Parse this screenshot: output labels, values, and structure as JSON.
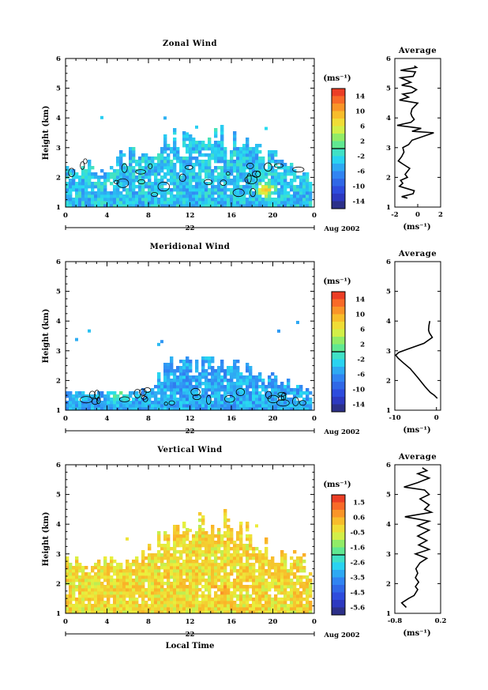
{
  "chart_data": [
    {
      "type": "heatmap",
      "title": "Zonal Wind",
      "ylabel": "Height (km)",
      "ylim": [
        1,
        6
      ],
      "y_ticks": [
        "1",
        "2",
        "3",
        "4",
        "5",
        "6"
      ],
      "xlim": [
        0,
        24
      ],
      "x_ticks": [
        "0",
        "4",
        "8",
        "12",
        "16",
        "20",
        "0"
      ],
      "date_day": "22",
      "date_label": "Aug 2002",
      "colorbar": {
        "unit": "(ms⁻¹)",
        "range": [
          -16,
          16
        ],
        "ticks": [
          "14",
          "10",
          "6",
          "2",
          "-2",
          "-6",
          "-10",
          "-14"
        ]
      },
      "field": {
        "mean": -3.5,
        "spread": 3,
        "low_frac": 0.07,
        "hump": [
          [
            3,
            0.2
          ],
          [
            14,
            0.45
          ],
          [
            16,
            0.38
          ],
          [
            21,
            0.25
          ],
          [
            24,
            0.12
          ]
        ],
        "hotspot": [
          19.5,
          1.6,
          10
        ]
      },
      "average_profile": {
        "title": "Average",
        "xlabel": "(ms⁻¹)",
        "xlim": [
          -2,
          2
        ],
        "x_ticks": [
          "-2",
          "0",
          "2"
        ],
        "ylim": [
          1,
          6
        ],
        "y_ticks": [
          "1",
          "2",
          "3",
          "4",
          "5",
          "6"
        ],
        "points": [
          [
            -0.9,
            1.3
          ],
          [
            -1.4,
            1.35
          ],
          [
            -0.4,
            1.45
          ],
          [
            -0.3,
            1.55
          ],
          [
            -1.6,
            1.7
          ],
          [
            -1.3,
            1.8
          ],
          [
            -1.5,
            1.9
          ],
          [
            -0.9,
            2.0
          ],
          [
            -1.1,
            2.1
          ],
          [
            -0.7,
            2.3
          ],
          [
            -1.3,
            2.45
          ],
          [
            -1.7,
            2.55
          ],
          [
            -1.4,
            2.7
          ],
          [
            -1.2,
            2.85
          ],
          [
            -1.3,
            3.0
          ],
          [
            -0.8,
            3.1
          ],
          [
            -0.5,
            3.25
          ],
          [
            1.4,
            3.5
          ],
          [
            -0.5,
            3.55
          ],
          [
            0.3,
            3.65
          ],
          [
            -1.8,
            3.75
          ],
          [
            -0.6,
            3.85
          ],
          [
            -0.3,
            3.95
          ],
          [
            -0.5,
            4.05
          ],
          [
            -0.6,
            4.15
          ],
          [
            -0.5,
            4.3
          ],
          [
            0.0,
            4.5
          ],
          [
            -1.6,
            4.6
          ],
          [
            -0.8,
            4.7
          ],
          [
            -1.3,
            4.8
          ],
          [
            -0.5,
            4.85
          ],
          [
            -0.1,
            4.95
          ],
          [
            -0.6,
            5.05
          ],
          [
            -1.4,
            5.1
          ],
          [
            -0.6,
            5.2
          ],
          [
            -1.5,
            5.35
          ],
          [
            -0.4,
            5.4
          ],
          [
            -0.2,
            5.55
          ],
          [
            -1.5,
            5.6
          ],
          [
            -0.1,
            5.7
          ],
          [
            -0.3,
            5.75
          ]
        ]
      }
    },
    {
      "type": "heatmap",
      "title": "Meridional Wind",
      "ylabel": "Height (km)",
      "ylim": [
        1,
        6
      ],
      "y_ticks": [
        "1",
        "2",
        "3",
        "4",
        "5",
        "6"
      ],
      "xlim": [
        0,
        24
      ],
      "x_ticks": [
        "0",
        "4",
        "8",
        "12",
        "16",
        "20",
        "0"
      ],
      "date_day": "22",
      "date_label": "Aug 2002",
      "colorbar": {
        "unit": "(ms⁻¹)",
        "range": [
          -16,
          16
        ],
        "ticks": [
          "14",
          "10",
          "6",
          "2",
          "-2",
          "-6",
          "-10",
          "-14"
        ]
      },
      "field": {
        "mean": -5,
        "spread": 2.5,
        "low_frac": 0.07,
        "hump": [
          [
            3,
            0.06
          ],
          [
            8,
            0.07
          ],
          [
            10,
            0.25
          ],
          [
            14,
            0.28
          ],
          [
            17,
            0.25
          ],
          [
            19,
            0.18
          ],
          [
            24,
            0.08
          ]
        ],
        "hotspot": [
          5.2,
          1.5,
          1
        ]
      },
      "average_profile": {
        "title": "Average",
        "xlabel": "(ms⁻¹)",
        "xlim": [
          -10,
          1
        ],
        "x_ticks": [
          "-10",
          "0"
        ],
        "ylim": [
          1,
          6
        ],
        "y_ticks": [
          "1",
          "2",
          "3",
          "4",
          "5",
          "6"
        ],
        "points": [
          [
            0.2,
            1.4
          ],
          [
            -0.5,
            1.5
          ],
          [
            -1.5,
            1.6
          ],
          [
            -2.8,
            1.8
          ],
          [
            -4.5,
            2.1
          ],
          [
            -6.3,
            2.4
          ],
          [
            -8.0,
            2.6
          ],
          [
            -9.2,
            2.75
          ],
          [
            -9.8,
            2.85
          ],
          [
            -9.0,
            2.95
          ],
          [
            -7.0,
            3.05
          ],
          [
            -3.0,
            3.25
          ],
          [
            -1.0,
            3.45
          ],
          [
            -1.7,
            3.6
          ],
          [
            -1.9,
            3.7
          ],
          [
            -1.8,
            3.85
          ],
          [
            -1.6,
            4.0
          ]
        ]
      }
    },
    {
      "type": "heatmap",
      "title": "Vertical Wind",
      "ylabel": "Height (km)",
      "ylim": [
        1,
        6
      ],
      "y_ticks": [
        "1",
        "2",
        "3",
        "4",
        "5",
        "6"
      ],
      "xlim": [
        0,
        24
      ],
      "x_ticks": [
        "0",
        "4",
        "8",
        "12",
        "16",
        "20",
        "0"
      ],
      "date_day": "22",
      "date_label": "Aug 2002",
      "xlabel": "Local Time",
      "colorbar": {
        "unit": "(ms⁻¹)",
        "range": [
          -6.5,
          2.5
        ],
        "ticks": [
          "1.5",
          "0.6",
          "-0.5",
          "-1.6",
          "-2.6",
          "-3.5",
          "-4.5",
          "-5.6"
        ]
      },
      "field": {
        "mean": 0,
        "spread": 0.8,
        "low_frac": 0.1,
        "hump": [
          [
            3,
            0.25
          ],
          [
            8,
            0.3
          ],
          [
            11,
            0.5
          ],
          [
            15,
            0.55
          ],
          [
            18,
            0.45
          ],
          [
            21,
            0.3
          ],
          [
            24,
            0.25
          ]
        ],
        "hotspot": [
          15,
          1.8,
          0.9
        ]
      },
      "average_profile": {
        "title": "Average",
        "xlabel": "(ms⁻¹)",
        "xlim": [
          -0.8,
          0.2
        ],
        "x_ticks": [
          "-0.8",
          "0.2"
        ],
        "ylim": [
          1,
          6
        ],
        "y_ticks": [
          "1",
          "2",
          "3",
          "4",
          "5",
          "6"
        ],
        "points": [
          [
            -0.55,
            1.2
          ],
          [
            -0.65,
            1.35
          ],
          [
            -0.5,
            1.5
          ],
          [
            -0.38,
            1.6
          ],
          [
            -0.3,
            1.8
          ],
          [
            -0.35,
            1.9
          ],
          [
            -0.28,
            2.05
          ],
          [
            -0.35,
            2.2
          ],
          [
            -0.3,
            2.35
          ],
          [
            -0.34,
            2.5
          ],
          [
            -0.25,
            2.7
          ],
          [
            -0.1,
            2.85
          ],
          [
            -0.35,
            3.0
          ],
          [
            -0.05,
            3.15
          ],
          [
            -0.28,
            3.3
          ],
          [
            -0.1,
            3.45
          ],
          [
            -0.3,
            3.6
          ],
          [
            -0.05,
            3.8
          ],
          [
            -0.3,
            3.95
          ],
          [
            -0.05,
            4.1
          ],
          [
            -0.58,
            4.25
          ],
          [
            0.0,
            4.4
          ],
          [
            -0.15,
            4.5
          ],
          [
            -0.05,
            4.65
          ],
          [
            -0.25,
            4.85
          ],
          [
            -0.05,
            5.0
          ],
          [
            -0.15,
            5.15
          ],
          [
            -0.6,
            5.25
          ],
          [
            -0.3,
            5.4
          ],
          [
            -0.05,
            5.55
          ],
          [
            -0.3,
            5.7
          ],
          [
            -0.1,
            5.8
          ],
          [
            -0.2,
            5.9
          ]
        ]
      }
    }
  ]
}
